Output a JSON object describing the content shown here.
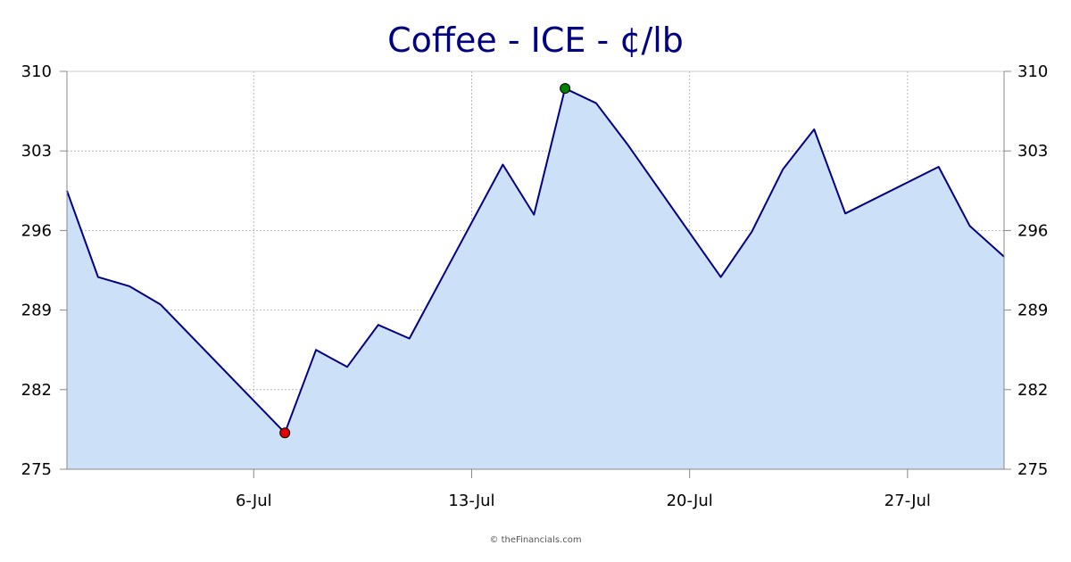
{
  "credit": "© theFinancials.com",
  "colors": {
    "line": "#000080",
    "area": "#cce0f7",
    "grid": "#aaaaaa",
    "axis": "#888888",
    "high_marker": "#008000",
    "low_marker": "#e00000",
    "title": "#000080"
  },
  "chart_data": {
    "type": "area",
    "title": "Coffee - ICE - ¢/lb",
    "xlabel": "",
    "ylabel": "",
    "ylim": [
      275,
      310
    ],
    "yticks": [
      "275",
      "282",
      "289",
      "296",
      "303",
      "310"
    ],
    "ytick_values": [
      275,
      282,
      289,
      296,
      303,
      310
    ],
    "xticks": [
      {
        "label": "6-Jul",
        "day": 6
      },
      {
        "label": "13-Jul",
        "day": 13
      },
      {
        "label": "20-Jul",
        "day": 20
      },
      {
        "label": "27-Jul",
        "day": 27
      }
    ],
    "xlim_days": [
      0,
      30.1
    ],
    "grid": true,
    "legend": "none",
    "series": [
      {
        "points": [
          {
            "date": "Jun-30",
            "day": 0,
            "value": 299.5
          },
          {
            "date": "Jul-1",
            "day": 1,
            "value": 291.9
          },
          {
            "date": "Jul-2",
            "day": 2,
            "value": 291.1
          },
          {
            "date": "Jul-3",
            "day": 3,
            "value": 289.5
          },
          {
            "date": "Jul-7",
            "day": 7,
            "value": 278.2
          },
          {
            "date": "Jul-8",
            "day": 8,
            "value": 285.5
          },
          {
            "date": "Jul-9",
            "day": 9,
            "value": 284.0
          },
          {
            "date": "Jul-10",
            "day": 10,
            "value": 287.7
          },
          {
            "date": "Jul-11",
            "day": 11,
            "value": 286.5
          },
          {
            "date": "Jul-14",
            "day": 14,
            "value": 301.8
          },
          {
            "date": "Jul-15",
            "day": 15,
            "value": 297.4
          },
          {
            "date": "Jul-16",
            "day": 16,
            "value": 308.5
          },
          {
            "date": "Jul-17",
            "day": 17,
            "value": 307.2
          },
          {
            "date": "Jul-18",
            "day": 18,
            "value": 303.6
          },
          {
            "date": "Jul-21",
            "day": 21,
            "value": 291.9
          },
          {
            "date": "Jul-22",
            "day": 22,
            "value": 295.9
          },
          {
            "date": "Jul-23",
            "day": 23,
            "value": 301.4
          },
          {
            "date": "Jul-24",
            "day": 24,
            "value": 304.9
          },
          {
            "date": "Jul-25",
            "day": 25,
            "value": 297.5
          },
          {
            "date": "Jul-28",
            "day": 28,
            "value": 301.6
          },
          {
            "date": "Jul-29",
            "day": 29,
            "value": 296.4
          },
          {
            "date": "Jul-30",
            "day": 30.1,
            "value": 293.7
          }
        ]
      }
    ],
    "annotations": [
      {
        "type": "high-marker",
        "day": 16,
        "value": 308.5
      },
      {
        "type": "low-marker",
        "day": 7,
        "value": 278.2
      }
    ]
  }
}
